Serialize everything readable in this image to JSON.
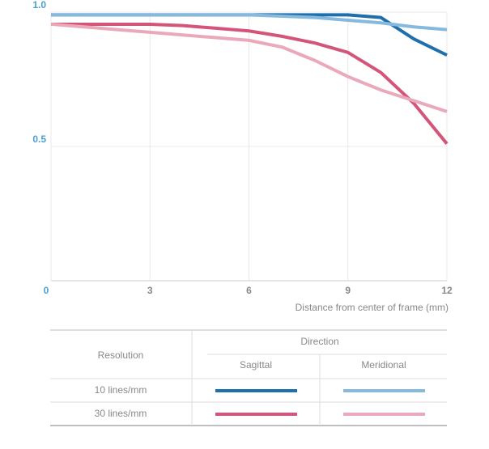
{
  "chart_data": {
    "type": "line",
    "x_label": "Distance from center of frame (mm)",
    "x": [
      0,
      1,
      2,
      3,
      4,
      5,
      6,
      7,
      8,
      9,
      10,
      11,
      12
    ],
    "xlim": [
      0,
      12
    ],
    "xticks": [
      0,
      3,
      6,
      9,
      12
    ],
    "ylim": [
      0,
      1
    ],
    "yticks": [
      {
        "value": 0.5,
        "label": "0.5"
      },
      {
        "value": 1,
        "label": "1.0"
      }
    ],
    "grid": true,
    "series": [
      {
        "resolution": "10 lines/mm",
        "direction": "Sagittal",
        "color": "#1f6fad",
        "values": [
          0.99,
          0.99,
          0.99,
          0.99,
          0.99,
          0.99,
          0.99,
          0.99,
          0.99,
          0.99,
          0.98,
          0.9,
          0.84
        ]
      },
      {
        "resolution": "10 lines/mm",
        "direction": "Meridional",
        "color": "#86b9de",
        "values": [
          0.99,
          0.99,
          0.99,
          0.99,
          0.99,
          0.99,
          0.99,
          0.985,
          0.98,
          0.97,
          0.96,
          0.945,
          0.935
        ]
      },
      {
        "resolution": "30 lines/mm",
        "direction": "Sagittal",
        "color": "#d4557a",
        "values": [
          0.955,
          0.955,
          0.955,
          0.955,
          0.95,
          0.94,
          0.93,
          0.91,
          0.885,
          0.85,
          0.775,
          0.66,
          0.51
        ]
      },
      {
        "resolution": "30 lines/mm",
        "direction": "Meridional",
        "color": "#eaa8bb",
        "values": [
          0.955,
          0.945,
          0.935,
          0.925,
          0.915,
          0.905,
          0.895,
          0.87,
          0.82,
          0.76,
          0.71,
          0.67,
          0.63
        ]
      }
    ],
    "table": {
      "resolution_header": "Resolution",
      "direction_header": "Direction"
    }
  }
}
